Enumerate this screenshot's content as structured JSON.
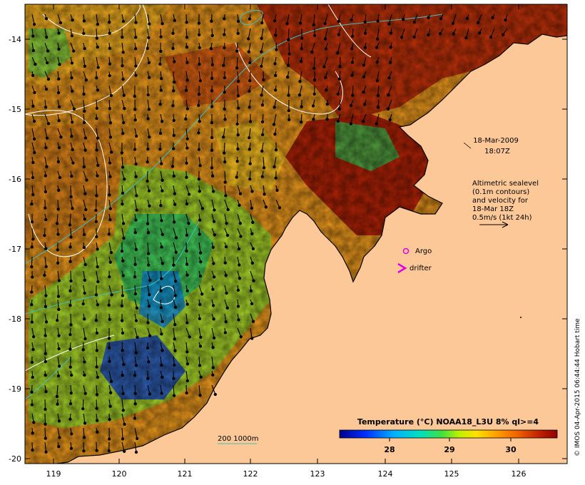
{
  "map": {
    "lat_ticks": [
      "-14",
      "-15",
      "-16",
      "-17",
      "-18",
      "-19",
      "-20"
    ],
    "lon_ticks": [
      "119",
      "120",
      "121",
      "122",
      "123",
      "124",
      "125",
      "126"
    ],
    "date_label": "18-Mar-2009",
    "time_label": "18:07Z",
    "sealevel_note": [
      "Altimetric sealevel",
      "(0.1m contours)",
      "and velocity for",
      "18-Mar 18Z",
      "0.5m/s (1kt 24h)"
    ],
    "argo_label": "Argo",
    "drifter_label": "drifter",
    "depth_label": "200  1000m",
    "colorbar_title": "Temperature (°C) NOAA18_L3U 8% ql>=4",
    "colorbar_ticks": [
      "28",
      "29",
      "30"
    ],
    "credit": "© IMOS 04-Apr-2015 06:44:44 Hobart time",
    "colors": {
      "land": "#fcc898",
      "argo": "#e000e0",
      "drifter": "#e000e0",
      "isobath": "#40c0c0",
      "contour": "#ffffff"
    }
  }
}
